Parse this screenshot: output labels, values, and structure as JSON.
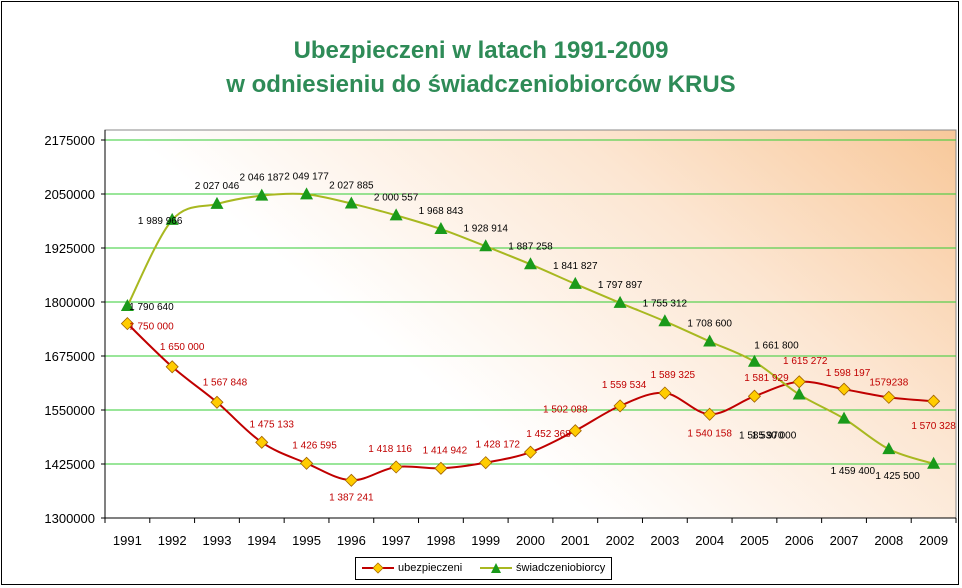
{
  "chart_data": {
    "type": "line",
    "title": [
      "Ubezpieczeni w latach 1991-2009",
      "w odniesieniu do świadczeniobiorców KRUS"
    ],
    "categories": [
      "1991",
      "1992",
      "1993",
      "1994",
      "1995",
      "1996",
      "1997",
      "1998",
      "1999",
      "2000",
      "2001",
      "2002",
      "2003",
      "2004",
      "2005",
      "2006",
      "2007",
      "2008",
      "2009"
    ],
    "ylim": [
      1300000,
      2175000
    ],
    "yticks": [
      1300000,
      1425000,
      1550000,
      1675000,
      1800000,
      1925000,
      2050000,
      2175000
    ],
    "ytick_labels": [
      "1300000",
      "1425000",
      "1550000",
      "1675000",
      "1800000",
      "1925000",
      "2050000",
      "2175000"
    ],
    "grid": true,
    "legend_position": "bottom",
    "series": [
      {
        "name": "ubezpieczeni",
        "color": "#c00000",
        "marker": "diamond",
        "marker_color": "#ffcc00",
        "label_color": "#c00000",
        "values": [
          1750000,
          1650000,
          1567848,
          1475133,
          1426595,
          1387241,
          1418116,
          1414942,
          1428172,
          1452368,
          1502088,
          1559534,
          1589325,
          1540158,
          1581929,
          1615272,
          1598197,
          1579238,
          1570328
        ],
        "labels": [
          "1 750 000",
          "1 650 000",
          "1 567 848",
          "1 475 133",
          "1 426 595",
          "1 387 241",
          "1 418 116",
          "1 414 942",
          "1 428 172",
          "1 452 368",
          "1 502 088",
          "1 559 534",
          "1 589 325",
          "1 540 158",
          "1 581 929",
          "1 615 272",
          "1 598 197",
          "1579238",
          "1 570 328"
        ]
      },
      {
        "name": "świadczeniobiorcy",
        "color": "#a8b820",
        "marker": "triangle",
        "marker_color": "#1a9a1a",
        "label_color": "#000000",
        "values": [
          1790640,
          1989966,
          2027046,
          2046187,
          2049177,
          2027885,
          2000557,
          1968843,
          1928914,
          1887258,
          1841827,
          1797897,
          1755312,
          1708600,
          1661800,
          1585970,
          1530000,
          1459400,
          1425500
        ],
        "labels": [
          "1 790 640",
          "1 989 966",
          "2 027 046",
          "2 046 187",
          "2 049 177",
          "2 027 885",
          "2 000 557",
          "1 968 843",
          "1 928 914",
          "1 887 258",
          "1 841 827",
          "1 797 897",
          "1 755 312",
          "1 708 600",
          "1 661 800",
          "1 585 970",
          "1 530 000",
          "1 459 400",
          "1 425 500"
        ]
      }
    ]
  }
}
